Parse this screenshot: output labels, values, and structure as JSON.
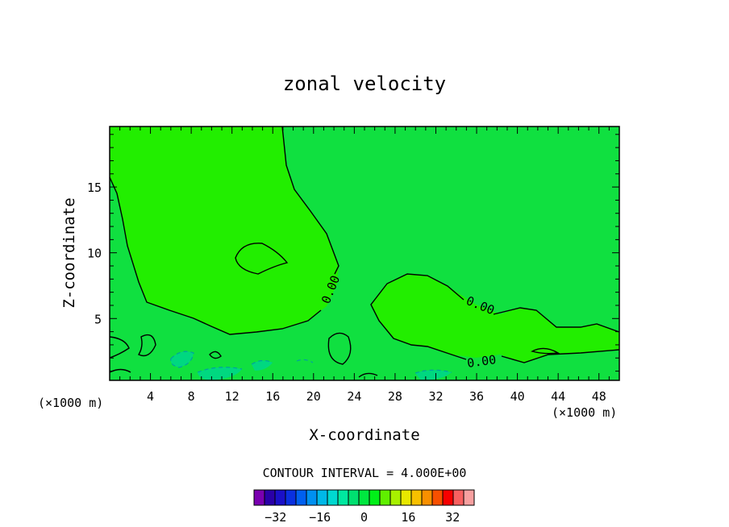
{
  "chart_data": {
    "type": "contour",
    "title": "zonal velocity",
    "xlabel": "X-coordinate",
    "ylabel": "Z-coordinate",
    "x_unit": "(×1000 m)",
    "xlim": [
      0,
      50
    ],
    "ylim": [
      0.3,
      19.6
    ],
    "x_ticks": [
      "4",
      "8",
      "12",
      "16",
      "20",
      "24",
      "28",
      "32",
      "36",
      "40",
      "44",
      "48"
    ],
    "y_ticks": [
      "5",
      "10",
      "15"
    ],
    "contour_labels": [
      "0.00",
      "0.00",
      "0.00"
    ],
    "contour_interval_text": "CONTOUR INTERVAL = 4.000E+00",
    "colorbar_ticks": [
      "−32",
      "−16",
      "0",
      "16",
      "32"
    ],
    "colorbar_levels": [
      -36,
      -32,
      -28,
      -24,
      -20,
      -16,
      -12,
      -8,
      -4,
      0,
      4,
      8,
      12,
      16,
      20,
      24,
      28,
      32,
      36
    ],
    "colorbar_colors": [
      "#7a00b0",
      "#2a00a8",
      "#1a10c8",
      "#0a30e0",
      "#0060f0",
      "#0090f0",
      "#00b8e8",
      "#00d8d0",
      "#00e8a0",
      "#00e070",
      "#00e840",
      "#00f018",
      "#60f000",
      "#a8f000",
      "#e8e800",
      "#f8c000",
      "#f89000",
      "#f85000",
      "#f80000",
      "#f86060",
      "#f8a0a0"
    ],
    "fill_colors": {
      "positive": "#22ee00",
      "near_zero": "#10e040",
      "negative": "#00d880"
    }
  }
}
